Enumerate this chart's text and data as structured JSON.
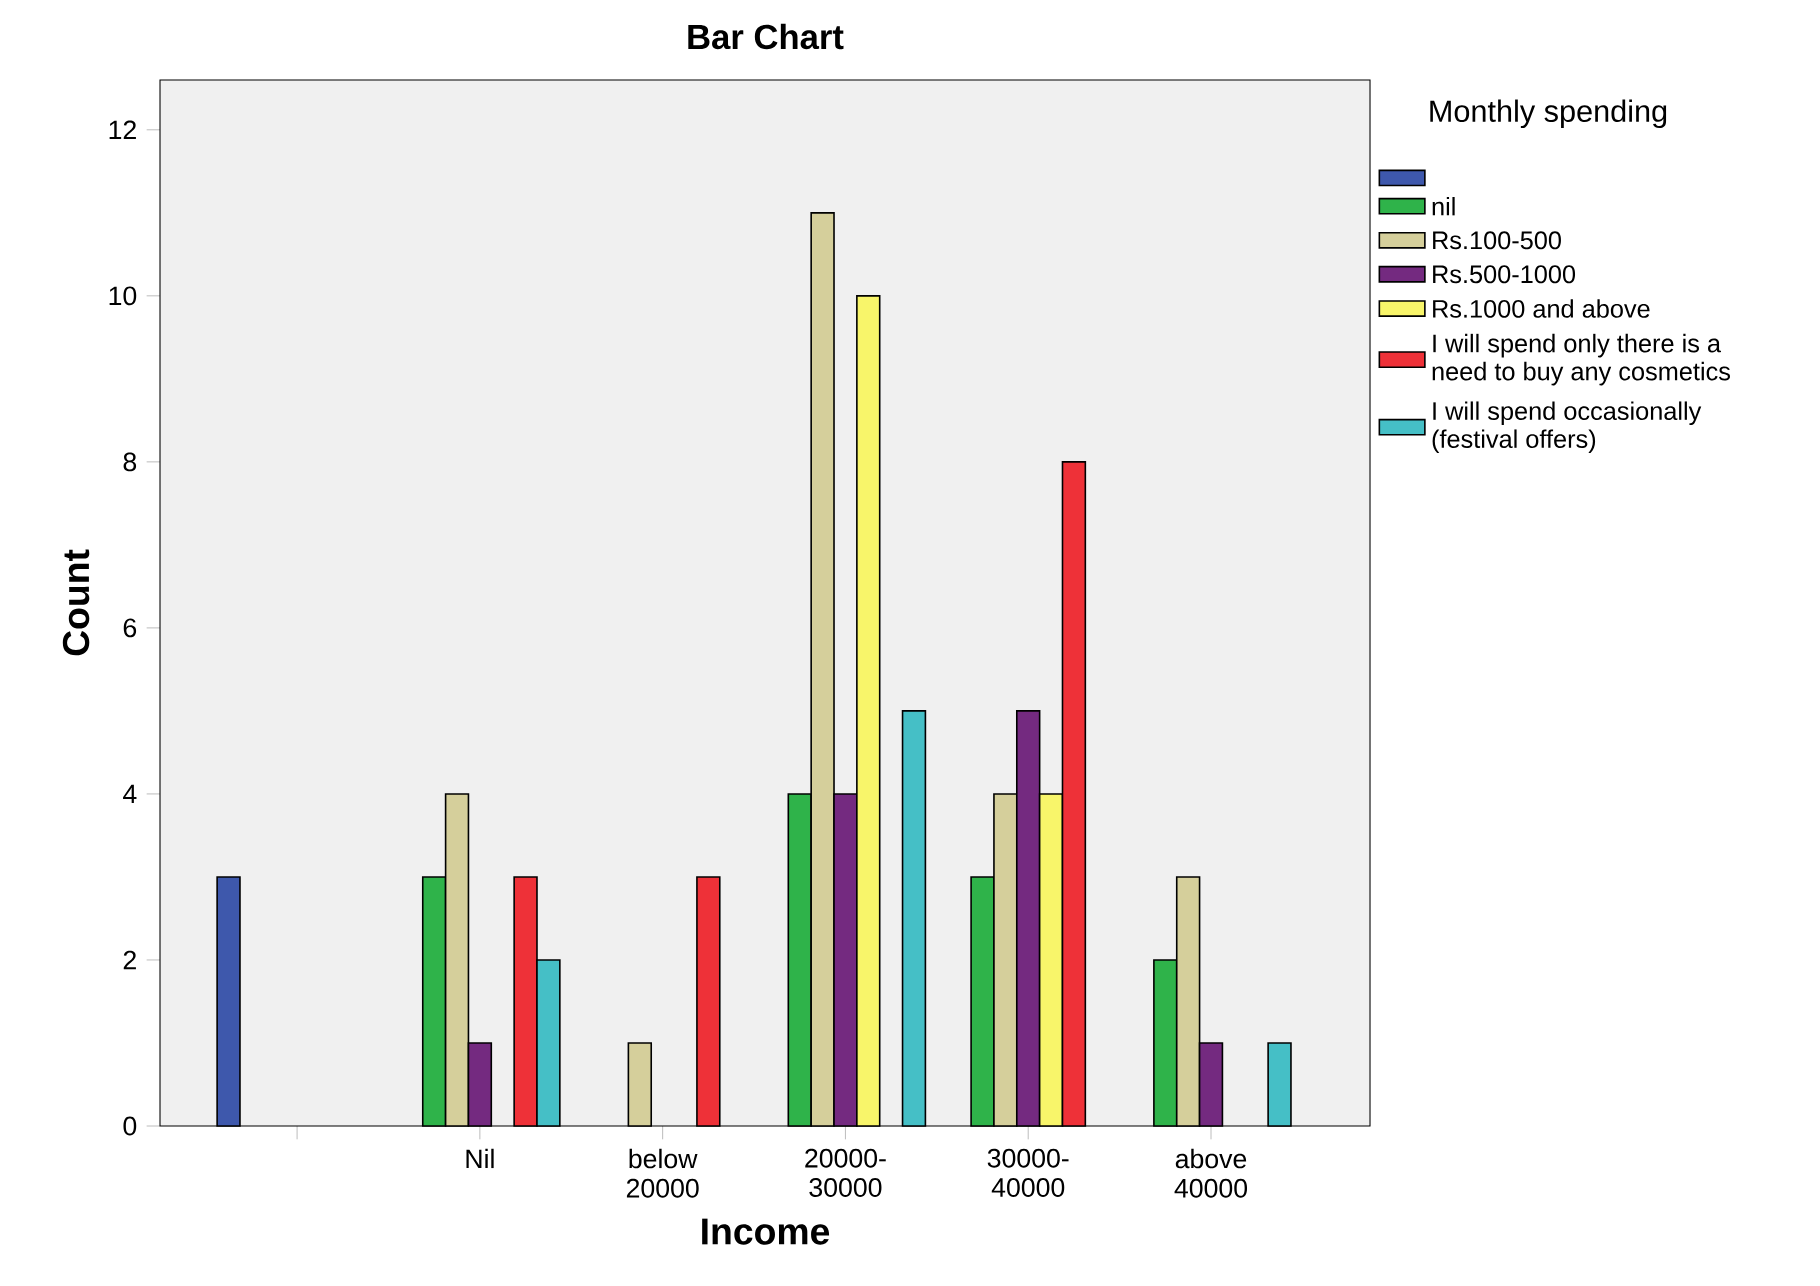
{
  "chart_data": {
    "type": "bar",
    "title": "Bar Chart",
    "xlabel": "Income",
    "ylabel": "Count",
    "legend_title": "Monthly spending",
    "categories": [
      null,
      "Nil",
      "below 20000",
      "20000-30000",
      "30000-40000",
      "above 40000"
    ],
    "series": [
      {
        "color": "#3e58ac",
        "values": [
          3,
          null,
          null,
          null,
          null,
          null
        ]
      },
      {
        "name": "nil",
        "color": "#2fb34a",
        "values": [
          null,
          3,
          null,
          4,
          3,
          2
        ]
      },
      {
        "name": "Rs.100-500",
        "color": "#d5cf9b",
        "values": [
          null,
          4,
          1,
          11,
          4,
          3
        ]
      },
      {
        "name": "Rs.500-1000",
        "color": "#742a80",
        "values": [
          null,
          1,
          null,
          4,
          5,
          1
        ]
      },
      {
        "name": "Rs.1000 and above",
        "color": "#f8f56a",
        "values": [
          null,
          null,
          null,
          10,
          4,
          null
        ]
      },
      {
        "name": "I will spend only there is a need to buy any cosmetics",
        "color": "#ee3138",
        "values": [
          null,
          3,
          3,
          null,
          8,
          null
        ]
      },
      {
        "name": "I will spend occasionally (festival offers)",
        "color": "#45bfc6",
        "values": [
          null,
          2,
          null,
          5,
          null,
          1
        ]
      }
    ],
    "ylim": [
      0,
      12.6
    ],
    "yticks": [
      0,
      2,
      4,
      6,
      8,
      10,
      12
    ],
    "legend": "right"
  }
}
